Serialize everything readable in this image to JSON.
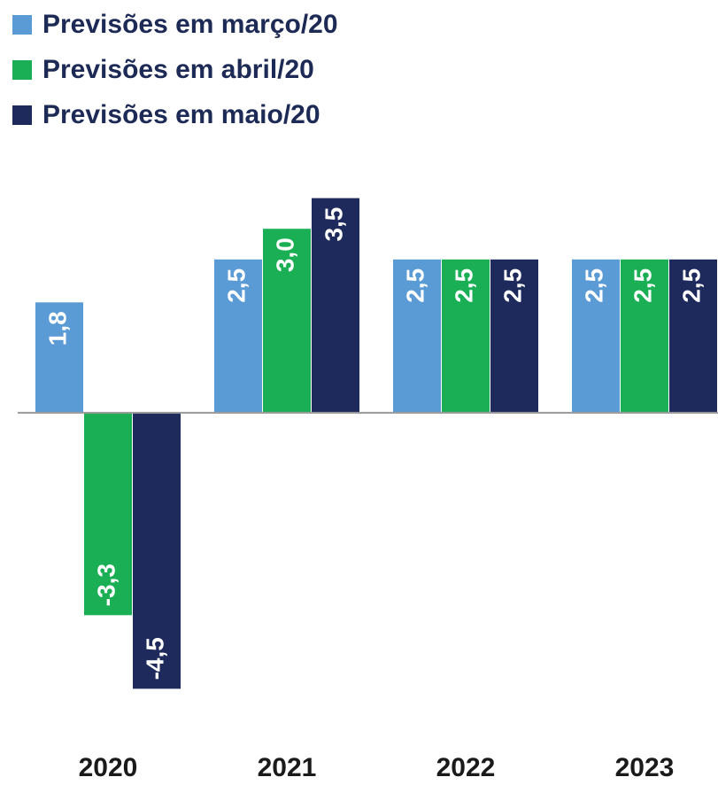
{
  "chart_data": {
    "type": "bar",
    "categories": [
      "2020",
      "2021",
      "2022",
      "2023"
    ],
    "series": [
      {
        "name": "Previsões em março/20",
        "color": "#5b9bd5",
        "values": [
          1.8,
          2.5,
          2.5,
          2.5
        ],
        "value_labels": [
          "1,8",
          "2,5",
          "2,5",
          "2,5"
        ]
      },
      {
        "name": "Previsões em abril/20",
        "color": "#1aaf54",
        "values": [
          -3.3,
          3.0,
          2.5,
          2.5
        ],
        "value_labels": [
          "-3,3",
          "3,0",
          "2,5",
          "2,5"
        ]
      },
      {
        "name": "Previsões em maio/20",
        "color": "#1f2a5c",
        "values": [
          -4.5,
          3.5,
          2.5,
          2.5
        ],
        "value_labels": [
          "-4,5",
          "3,5",
          "2,5",
          "2,5"
        ]
      }
    ],
    "ylim": [
      -5,
      4
    ]
  }
}
